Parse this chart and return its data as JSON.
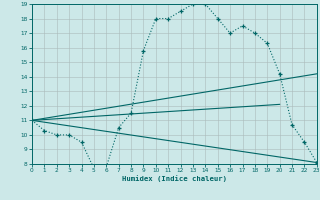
{
  "xlabel": "Humidex (Indice chaleur)",
  "bg_color": "#cce8e8",
  "line_color": "#006666",
  "grid_color": "#aabbbb",
  "xlim": [
    0,
    23
  ],
  "ylim": [
    8,
    19
  ],
  "xticks": [
    0,
    1,
    2,
    3,
    4,
    5,
    6,
    7,
    8,
    9,
    10,
    11,
    12,
    13,
    14,
    15,
    16,
    17,
    18,
    19,
    20,
    21,
    22,
    23
  ],
  "yticks": [
    8,
    9,
    10,
    11,
    12,
    13,
    14,
    15,
    16,
    17,
    18,
    19
  ],
  "main_curve": {
    "x": [
      0,
      1,
      2,
      3,
      4,
      5,
      6,
      7,
      8,
      9,
      10,
      11,
      12,
      13,
      14,
      15,
      16,
      17,
      18,
      19,
      20,
      21,
      22,
      23
    ],
    "y": [
      11,
      10.3,
      10,
      10,
      9.5,
      7.7,
      7.8,
      10.5,
      11.5,
      15.8,
      18,
      18,
      18.5,
      19,
      19,
      18,
      17,
      17.5,
      17,
      16.3,
      14.2,
      10.7,
      9.5,
      8.1
    ]
  },
  "line_upper": {
    "x": [
      0,
      23
    ],
    "y": [
      11,
      14.2
    ]
  },
  "line_mid": {
    "x": [
      0,
      20
    ],
    "y": [
      11,
      12.1
    ]
  },
  "line_lower": {
    "x": [
      0,
      23
    ],
    "y": [
      11,
      8.1
    ]
  }
}
